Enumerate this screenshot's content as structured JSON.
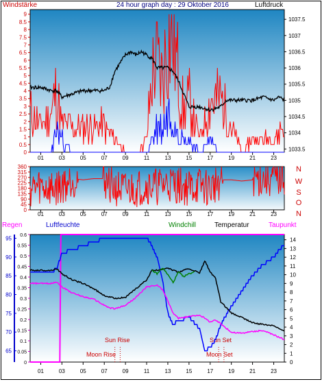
{
  "header": {
    "left": "Windstärke",
    "center": "24 hour graph day : 29 Oktober 2016",
    "right": "Luftdruck"
  },
  "legend2": {
    "regen": "Regen",
    "luftfeuchte": "Luftfeuchte",
    "windchill": "Windchill",
    "temperatur": "Temperatur",
    "taupunkt": "Taupunkt"
  },
  "dir_labels": [
    "N",
    "W",
    "S",
    "O",
    "N"
  ],
  "events": {
    "sun_rise": "Sun Rise",
    "sun_set": "Sun Set",
    "moon_rise": "Moon Rise",
    "moon_set": "Moon Set"
  },
  "colors": {
    "wind_gust": "#ff0000",
    "wind_avg": "#0000ff",
    "pressure": "#000000",
    "regen": "#ff00ff",
    "humidity": "#0000ff",
    "windchill": "#008000",
    "temperature": "#000000",
    "dewpoint": "#ff00ff",
    "plot_top": "#1f86c2",
    "plot_bottom": "#ffffff"
  },
  "chart_data": [
    {
      "type": "line",
      "title": "24 hour graph day : 29 Oktober 2016",
      "xticks": [
        "01",
        "03",
        "05",
        "07",
        "09",
        "11",
        "13",
        "15",
        "17",
        "19",
        "21",
        "23"
      ],
      "y_left": {
        "label": "Windstärke",
        "range": [
          0,
          9.3
        ],
        "ticks": [
          0,
          0.5,
          1,
          1.5,
          2,
          2.5,
          3,
          3.5,
          4,
          4.5,
          5,
          5.5,
          6,
          6.5,
          7,
          7.5,
          8,
          8.5,
          9
        ]
      },
      "y_right": {
        "label": "Luftdruck",
        "range": [
          1033.4,
          1037.8
        ],
        "ticks": [
          1033.5,
          1034,
          1034.5,
          1035,
          1035.5,
          1036,
          1036.5,
          1037,
          1037.5
        ]
      },
      "series": [
        {
          "name": "Luftdruck",
          "axis": "right",
          "x": [
            0,
            1,
            2,
            2.5,
            3,
            4,
            5,
            6,
            7,
            7.5,
            8,
            9,
            9.5,
            10,
            10.5,
            11,
            11.5,
            12,
            13,
            13.5,
            14,
            14.5,
            15,
            16,
            17,
            18,
            18.5,
            19,
            20,
            21,
            22,
            23,
            23.5,
            24
          ],
          "y": [
            1035.4,
            1035.4,
            1035.3,
            1035.3,
            1035.1,
            1035.2,
            1035.3,
            1035.3,
            1035.3,
            1035.4,
            1035.9,
            1036.4,
            1036.5,
            1036.4,
            1036.5,
            1036.4,
            1036.3,
            1036.0,
            1036.0,
            1035.9,
            1035.6,
            1035.2,
            1034.8,
            1034.8,
            1034.7,
            1034.8,
            1035.0,
            1035.0,
            1035.0,
            1035.0,
            1035.1,
            1035.0,
            1035.1,
            1035.0
          ]
        },
        {
          "name": "Windböen",
          "axis": "left",
          "x": [
            0,
            1,
            2,
            2.5,
            3,
            4,
            5,
            6,
            7,
            8,
            9,
            10,
            11,
            11.5,
            12,
            12.5,
            13,
            13.5,
            14,
            14.5,
            15,
            16,
            17,
            18,
            19,
            20,
            21,
            22,
            23,
            24
          ],
          "y": [
            3,
            2,
            3,
            5,
            2,
            2,
            2,
            2,
            2,
            1,
            0,
            0,
            1,
            6,
            7,
            5.5,
            9,
            9,
            6,
            3,
            4,
            1,
            4,
            4,
            2,
            0,
            1,
            1,
            1,
            2
          ]
        },
        {
          "name": "Windmittel",
          "axis": "left",
          "x": [
            0,
            1,
            2,
            2.5,
            3,
            4,
            6,
            8,
            10,
            11,
            11.5,
            12,
            12.5,
            13,
            13.5,
            14,
            14.5,
            15,
            16,
            17,
            18,
            20,
            22,
            24
          ],
          "y": [
            0,
            0,
            0,
            2,
            1,
            0,
            0,
            0,
            0,
            0,
            1,
            2,
            2,
            3,
            3.5,
            2,
            1,
            1,
            0,
            1,
            0,
            0,
            0,
            0
          ]
        }
      ]
    },
    {
      "type": "line",
      "xticks": [
        "01",
        "03",
        "05",
        "07",
        "09",
        "11",
        "13",
        "15",
        "17",
        "19",
        "21",
        "23"
      ],
      "y_left": {
        "range": [
          0,
          360
        ],
        "ticks": [
          0,
          45,
          90,
          135,
          180,
          225,
          270,
          315,
          360
        ]
      },
      "series": [
        {
          "name": "Windrichtung",
          "x": [
            0,
            1,
            2,
            3,
            4,
            5,
            6,
            7,
            8,
            9,
            10,
            11,
            12,
            13,
            14,
            15,
            16,
            17,
            18,
            19,
            20,
            21,
            22,
            23,
            24
          ],
          "y": [
            180,
            190,
            170,
            200,
            260,
            250,
            260,
            260,
            180,
            160,
            175,
            200,
            190,
            220,
            200,
            180,
            200,
            170,
            250,
            250,
            240,
            250,
            260,
            250,
            270
          ]
        }
      ]
    },
    {
      "type": "line",
      "xticks": [
        "01",
        "03",
        "05",
        "07",
        "09",
        "11",
        "13",
        "15",
        "17",
        "19",
        "21",
        "23"
      ],
      "y_regen": {
        "label": "Regen",
        "range": [
          0,
          0.6
        ],
        "ticks": [
          0,
          0.05,
          0.1,
          0.15,
          0.2,
          0.25,
          0.3,
          0.35,
          0.4,
          0.45,
          0.5,
          0.55,
          0.6
        ]
      },
      "y_humidity": {
        "label": "Luftfeuchte",
        "range": [
          62,
          96
        ],
        "ticks": [
          65,
          70,
          75,
          80,
          85,
          90,
          95
        ]
      },
      "y_temp": {
        "label": "Temperatur",
        "range": [
          0,
          14.6
        ],
        "ticks": [
          0,
          1,
          2,
          3,
          4,
          5,
          6,
          7,
          8,
          9,
          10,
          11,
          12,
          13,
          14
        ]
      },
      "series": [
        {
          "name": "Regen",
          "axis": "regen",
          "x": [
            0,
            2.8,
            2.9,
            24
          ],
          "y": [
            0,
            0,
            0.6,
            0.6
          ]
        },
        {
          "name": "Luftfeuchte",
          "axis": "humidity",
          "x": [
            0,
            1,
            2,
            2.5,
            3,
            4,
            5,
            6,
            7,
            8,
            9,
            10,
            11,
            11.5,
            12,
            12.5,
            13,
            13.5,
            14,
            15,
            16,
            16.5,
            17,
            17.5,
            18,
            19,
            20,
            21,
            22,
            23,
            23.5,
            24
          ],
          "y": [
            86,
            86,
            86,
            87,
            91,
            92,
            93,
            94,
            95,
            95,
            95,
            95,
            95,
            93,
            90,
            84,
            75,
            72,
            73,
            74,
            71,
            65,
            66,
            68,
            72,
            77,
            81,
            85,
            88,
            90,
            92,
            93
          ]
        },
        {
          "name": "Temperatur",
          "axis": "temp",
          "x": [
            0,
            1,
            2,
            2.5,
            3,
            4,
            5,
            6,
            7,
            8,
            9,
            10,
            11,
            11.5,
            12,
            13,
            13.5,
            14,
            15,
            16,
            16.5,
            17,
            17.5,
            18,
            19,
            20,
            21,
            22,
            23,
            24
          ],
          "y": [
            10.5,
            10.5,
            10.5,
            10.7,
            10.1,
            9.4,
            9.0,
            8.4,
            7.6,
            7.3,
            7.4,
            8.4,
            9.4,
            10.5,
            10.5,
            10.8,
            10.5,
            10.3,
            10.7,
            10.2,
            11.6,
            10.3,
            9.6,
            6.9,
            5.6,
            5.1,
            4.5,
            4.3,
            4.2,
            3.5
          ]
        },
        {
          "name": "Windchill",
          "axis": "temp",
          "x": [
            11.5,
            12,
            12.5,
            13,
            13.5,
            14,
            14.5,
            15,
            15.5
          ],
          "y": [
            10.5,
            10.1,
            10.8,
            10.0,
            9.1,
            10.3,
            9.8,
            10.1,
            10.3
          ]
        },
        {
          "name": "Taupunkt",
          "axis": "temp",
          "x": [
            0,
            1,
            2,
            2.5,
            3,
            4,
            5,
            6,
            7,
            7.5,
            8,
            9,
            10,
            11,
            12,
            12.5,
            13,
            13.5,
            14,
            15,
            16,
            16.5,
            17,
            17.5,
            18,
            19,
            20,
            21,
            22,
            23,
            24
          ],
          "y": [
            9.0,
            9.0,
            9.0,
            9.2,
            8.6,
            7.9,
            7.5,
            7.2,
            6.5,
            6.2,
            6.1,
            6.5,
            7.4,
            8.6,
            8.8,
            8.3,
            7.0,
            5.6,
            5.0,
            5.2,
            5.4,
            5.0,
            4.6,
            4.8,
            4.4,
            3.4,
            3.3,
            3.5,
            3.6,
            3.1,
            2.6
          ]
        }
      ]
    }
  ]
}
